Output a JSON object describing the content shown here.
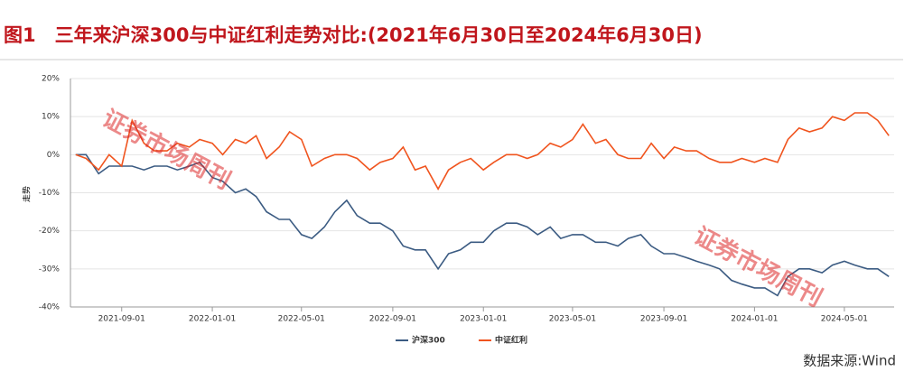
{
  "chart_data": {
    "type": "line",
    "title": "图1　三年来沪深300与中证红利走势对比:(2021年6月30日至2024年6月30日)",
    "y_label": "走势",
    "source": "数据来源:Wind",
    "watermarks": [
      "证券市场周刊",
      "证券市场周刊"
    ],
    "x": [
      "2021-07-01",
      "2021-07-15",
      "2021-08-01",
      "2021-08-15",
      "2021-09-01",
      "2021-09-15",
      "2021-10-01",
      "2021-10-15",
      "2021-11-01",
      "2021-11-15",
      "2021-12-01",
      "2021-12-15",
      "2022-01-01",
      "2022-01-15",
      "2022-02-01",
      "2022-02-15",
      "2022-03-01",
      "2022-03-15",
      "2022-04-01",
      "2022-04-15",
      "2022-05-01",
      "2022-05-15",
      "2022-06-01",
      "2022-06-15",
      "2022-07-01",
      "2022-07-15",
      "2022-08-01",
      "2022-08-15",
      "2022-09-01",
      "2022-09-15",
      "2022-10-01",
      "2022-10-15",
      "2022-11-01",
      "2022-11-15",
      "2022-12-01",
      "2022-12-15",
      "2023-01-01",
      "2023-01-15",
      "2023-02-01",
      "2023-02-15",
      "2023-03-01",
      "2023-03-15",
      "2023-04-01",
      "2023-04-15",
      "2023-05-01",
      "2023-05-15",
      "2023-06-01",
      "2023-06-15",
      "2023-07-01",
      "2023-07-15",
      "2023-08-01",
      "2023-08-15",
      "2023-09-01",
      "2023-09-15",
      "2023-10-01",
      "2023-10-15",
      "2023-11-01",
      "2023-11-15",
      "2023-12-01",
      "2023-12-15",
      "2024-01-01",
      "2024-01-15",
      "2024-02-01",
      "2024-02-15",
      "2024-03-01",
      "2024-03-15",
      "2024-04-01",
      "2024-04-15",
      "2024-05-01",
      "2024-05-15",
      "2024-06-01",
      "2024-06-15",
      "2024-06-30"
    ],
    "series": [
      {
        "name": "沪深300",
        "color": "#3b5b82",
        "values": [
          0,
          0,
          -5,
          -3,
          -3,
          -3,
          -4,
          -3,
          -3,
          -4,
          -3,
          -2,
          -6,
          -7,
          -10,
          -9,
          -11,
          -15,
          -17,
          -17,
          -21,
          -22,
          -19,
          -15,
          -12,
          -16,
          -18,
          -18,
          -20,
          -24,
          -25,
          -25,
          -30,
          -26,
          -25,
          -23,
          -23,
          -20,
          -18,
          -18,
          -19,
          -21,
          -19,
          -22,
          -21,
          -21,
          -23,
          -23,
          -24,
          -22,
          -21,
          -24,
          -26,
          -26,
          -27,
          -28,
          -29,
          -30,
          -33,
          -34,
          -35,
          -35,
          -37,
          -32,
          -30,
          -30,
          -31,
          -29,
          -28,
          -29,
          -30,
          -30,
          -32
        ]
      },
      {
        "name": "中证红利",
        "color": "#f0541e",
        "values": [
          0,
          -1,
          -4,
          0,
          -3,
          9,
          3,
          1,
          1,
          3,
          2,
          4,
          3,
          0,
          4,
          3,
          5,
          -1,
          2,
          6,
          4,
          -3,
          -1,
          0,
          0,
          -1,
          -4,
          -2,
          -1,
          2,
          -4,
          -3,
          -9,
          -4,
          -2,
          -1,
          -4,
          -2,
          0,
          0,
          -1,
          0,
          3,
          2,
          4,
          8,
          3,
          4,
          0,
          -1,
          -1,
          3,
          -1,
          2,
          1,
          1,
          -1,
          -2,
          -2,
          -1,
          -2,
          -1,
          -2,
          4,
          7,
          6,
          7,
          10,
          9,
          11,
          11,
          9,
          5
        ]
      }
    ],
    "xlim": [
      "2021-06-24",
      "2024-07-07"
    ],
    "xticks": [
      "2021-09-01",
      "2022-01-01",
      "2022-05-01",
      "2022-09-01",
      "2023-01-01",
      "2023-05-01",
      "2023-09-01",
      "2024-01-01",
      "2024-05-01"
    ],
    "ylim": [
      -40,
      20
    ],
    "yticks": [
      {
        "value": -40,
        "label": "-40%"
      },
      {
        "value": -30,
        "label": "-30%"
      },
      {
        "value": -20,
        "label": "-20%"
      },
      {
        "value": -10,
        "label": "-10%"
      },
      {
        "value": 0,
        "label": "0%"
      },
      {
        "value": 10,
        "label": "10%"
      },
      {
        "value": 20,
        "label": "20%"
      }
    ],
    "legend": "bottom"
  }
}
